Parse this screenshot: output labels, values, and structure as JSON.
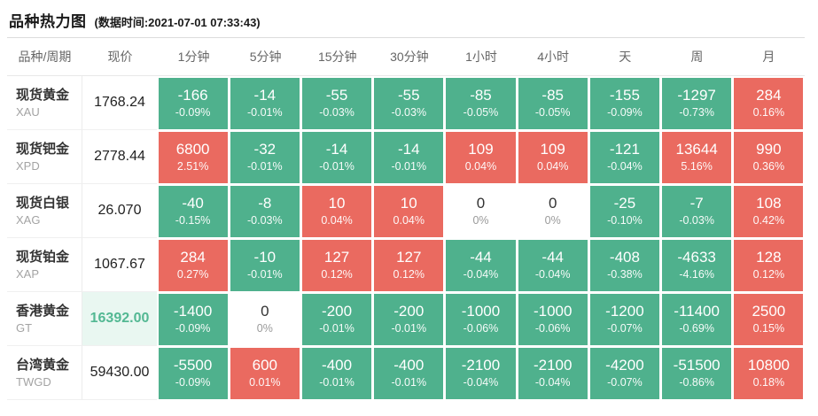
{
  "header": {
    "title": "品种热力图",
    "timestamp": "(数据时间:2021-07-01 07:33:43)"
  },
  "colors": {
    "up": "#EA6A60",
    "down": "#4FB18D",
    "price_highlight_bg": "#E9F7F1",
    "price_highlight_text": "#53B893"
  },
  "table": {
    "columns": [
      "品种/周期",
      "现价",
      "1分钟",
      "5分钟",
      "15分钟",
      "30分钟",
      "1小时",
      "4小时",
      "天",
      "周",
      "月"
    ],
    "rows": [
      {
        "name": "现货黄金",
        "code": "XAU",
        "price": "1768.24",
        "price_highlight": false,
        "cells": [
          {
            "value": "-166",
            "pct": "-0.09%",
            "state": "down"
          },
          {
            "value": "-14",
            "pct": "-0.01%",
            "state": "down"
          },
          {
            "value": "-55",
            "pct": "-0.03%",
            "state": "down"
          },
          {
            "value": "-55",
            "pct": "-0.03%",
            "state": "down"
          },
          {
            "value": "-85",
            "pct": "-0.05%",
            "state": "down"
          },
          {
            "value": "-85",
            "pct": "-0.05%",
            "state": "down"
          },
          {
            "value": "-155",
            "pct": "-0.09%",
            "state": "down"
          },
          {
            "value": "-1297",
            "pct": "-0.73%",
            "state": "down"
          },
          {
            "value": "284",
            "pct": "0.16%",
            "state": "up"
          }
        ]
      },
      {
        "name": "现货钯金",
        "code": "XPD",
        "price": "2778.44",
        "price_highlight": false,
        "cells": [
          {
            "value": "6800",
            "pct": "2.51%",
            "state": "up"
          },
          {
            "value": "-32",
            "pct": "-0.01%",
            "state": "down"
          },
          {
            "value": "-14",
            "pct": "-0.01%",
            "state": "down"
          },
          {
            "value": "-14",
            "pct": "-0.01%",
            "state": "down"
          },
          {
            "value": "109",
            "pct": "0.04%",
            "state": "up"
          },
          {
            "value": "109",
            "pct": "0.04%",
            "state": "up"
          },
          {
            "value": "-121",
            "pct": "-0.04%",
            "state": "down"
          },
          {
            "value": "13644",
            "pct": "5.16%",
            "state": "up"
          },
          {
            "value": "990",
            "pct": "0.36%",
            "state": "up"
          }
        ]
      },
      {
        "name": "现货白银",
        "code": "XAG",
        "price": "26.070",
        "price_highlight": false,
        "cells": [
          {
            "value": "-40",
            "pct": "-0.15%",
            "state": "down"
          },
          {
            "value": "-8",
            "pct": "-0.03%",
            "state": "down"
          },
          {
            "value": "10",
            "pct": "0.04%",
            "state": "up"
          },
          {
            "value": "10",
            "pct": "0.04%",
            "state": "up"
          },
          {
            "value": "0",
            "pct": "0%",
            "state": "flat"
          },
          {
            "value": "0",
            "pct": "0%",
            "state": "flat"
          },
          {
            "value": "-25",
            "pct": "-0.10%",
            "state": "down"
          },
          {
            "value": "-7",
            "pct": "-0.03%",
            "state": "down"
          },
          {
            "value": "108",
            "pct": "0.42%",
            "state": "up"
          }
        ]
      },
      {
        "name": "现货铂金",
        "code": "XAP",
        "price": "1067.67",
        "price_highlight": false,
        "cells": [
          {
            "value": "284",
            "pct": "0.27%",
            "state": "up"
          },
          {
            "value": "-10",
            "pct": "-0.01%",
            "state": "down"
          },
          {
            "value": "127",
            "pct": "0.12%",
            "state": "up"
          },
          {
            "value": "127",
            "pct": "0.12%",
            "state": "up"
          },
          {
            "value": "-44",
            "pct": "-0.04%",
            "state": "down"
          },
          {
            "value": "-44",
            "pct": "-0.04%",
            "state": "down"
          },
          {
            "value": "-408",
            "pct": "-0.38%",
            "state": "down"
          },
          {
            "value": "-4633",
            "pct": "-4.16%",
            "state": "down"
          },
          {
            "value": "128",
            "pct": "0.12%",
            "state": "up"
          }
        ]
      },
      {
        "name": "香港黄金",
        "code": "GT",
        "price": "16392.00",
        "price_highlight": true,
        "cells": [
          {
            "value": "-1400",
            "pct": "-0.09%",
            "state": "down"
          },
          {
            "value": "0",
            "pct": "0%",
            "state": "flat"
          },
          {
            "value": "-200",
            "pct": "-0.01%",
            "state": "down"
          },
          {
            "value": "-200",
            "pct": "-0.01%",
            "state": "down"
          },
          {
            "value": "-1000",
            "pct": "-0.06%",
            "state": "down"
          },
          {
            "value": "-1000",
            "pct": "-0.06%",
            "state": "down"
          },
          {
            "value": "-1200",
            "pct": "-0.07%",
            "state": "down"
          },
          {
            "value": "-11400",
            "pct": "-0.69%",
            "state": "down"
          },
          {
            "value": "2500",
            "pct": "0.15%",
            "state": "up"
          }
        ]
      },
      {
        "name": "台湾黄金",
        "code": "TWGD",
        "price": "59430.00",
        "price_highlight": false,
        "cells": [
          {
            "value": "-5500",
            "pct": "-0.09%",
            "state": "down"
          },
          {
            "value": "600",
            "pct": "0.01%",
            "state": "up"
          },
          {
            "value": "-400",
            "pct": "-0.01%",
            "state": "down"
          },
          {
            "value": "-400",
            "pct": "-0.01%",
            "state": "down"
          },
          {
            "value": "-2100",
            "pct": "-0.04%",
            "state": "down"
          },
          {
            "value": "-2100",
            "pct": "-0.04%",
            "state": "down"
          },
          {
            "value": "-4200",
            "pct": "-0.07%",
            "state": "down"
          },
          {
            "value": "-51500",
            "pct": "-0.86%",
            "state": "down"
          },
          {
            "value": "10800",
            "pct": "0.18%",
            "state": "up"
          }
        ]
      }
    ]
  }
}
